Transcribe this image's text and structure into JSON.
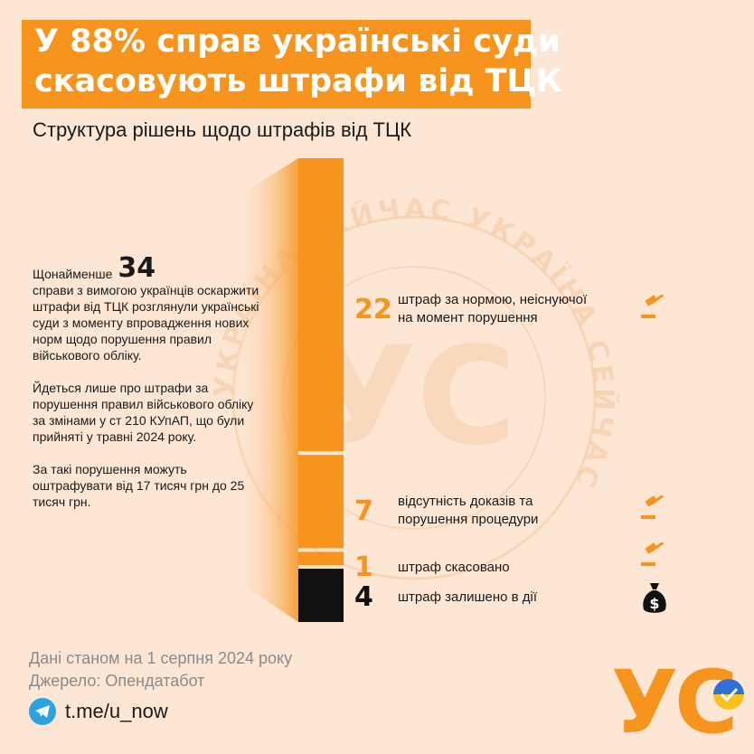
{
  "header": {
    "title_line1": "У 88% справ українські суди",
    "title_line2": "скасовують штрафи від ТЦК",
    "subtitle": "Структура рішень щодо штрафів від ТЦК"
  },
  "intro": {
    "prefix": "Щонайменше",
    "total": "34",
    "paragraph1": "справи з вимогою українців оскаржити штрафи від ТЦК розглянули українські суди з моменту впровадження нових норм щодо порушення правил військового обліку.",
    "paragraph2": "Йдеться лише про штрафи за порушення правил військового обліку за змінами у ст 210 КУпАП, що були прийняті у травні 2024 року.",
    "paragraph3": "За такі порушення можуть оштрафувати від 17 тисяч грн до 25 тисяч грн."
  },
  "chart_data": {
    "type": "bar",
    "stacked": true,
    "orientation": "vertical",
    "total": 34,
    "segments": [
      {
        "label": "штраф за нормою, неіснуючої на момент порушення",
        "value": 22,
        "color": "#f7941d"
      },
      {
        "label": "відсутність доказів та порушення процедури",
        "value": 7,
        "color": "#f7941d"
      },
      {
        "label": "штраф скасовано",
        "value": 1,
        "color": "#f7941d"
      },
      {
        "label": "штраф залишено в дії",
        "value": 4,
        "color": "#111111"
      }
    ]
  },
  "rows": [
    {
      "num": "22",
      "line1": "штраф за нормою, неіснуючої",
      "line2": "на момент порушення",
      "icon": "gavel-icon"
    },
    {
      "num": "7",
      "line1": "відсутність доказів та",
      "line2": "порушення процедури",
      "icon": "gavel-icon"
    },
    {
      "num": "1",
      "line1": "штраф скасовано",
      "line2": "",
      "icon": "gavel-icon"
    },
    {
      "num": "4",
      "line1": "штраф залишено в дії",
      "line2": "",
      "icon": "money-bag-icon"
    }
  ],
  "watermark_text": "УКРАЇНА СЕЙЧАС",
  "footer": {
    "date_note": "Дані станом на 1 серпня 2024 року",
    "source_note": "Джерело: Опендатабот",
    "telegram": "t.me/u_now"
  },
  "logo": {
    "text": "УС"
  },
  "colors": {
    "accent": "#f7941d",
    "background": "#fde6d4",
    "kept": "#111111"
  }
}
